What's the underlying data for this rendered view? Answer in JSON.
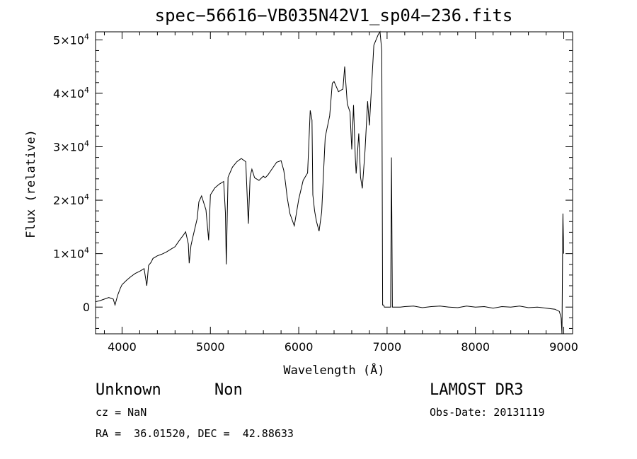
{
  "chart_data": {
    "type": "line",
    "title": "spec−56616−VB035N42V1_sp04−236.fits",
    "xlabel": "Wavelength (Å)",
    "ylabel": "Flux (relative)",
    "xlim": [
      3700,
      9100
    ],
    "ylim": [
      -5000,
      51500
    ],
    "grid": false,
    "x_ticks": [
      {
        "value": 4000,
        "label": "4000"
      },
      {
        "value": 5000,
        "label": "5000"
      },
      {
        "value": 6000,
        "label": "6000"
      },
      {
        "value": 7000,
        "label": "7000"
      },
      {
        "value": 8000,
        "label": "8000"
      },
      {
        "value": 9000,
        "label": "9000"
      }
    ],
    "y_ticks": [
      {
        "value": 0,
        "label": "0",
        "mant": "",
        "exp": ""
      },
      {
        "value": 10000,
        "label": "1×10^4",
        "mant": "1×10",
        "exp": "4"
      },
      {
        "value": 20000,
        "label": "2×10^4",
        "mant": "2×10",
        "exp": "4"
      },
      {
        "value": 30000,
        "label": "3×10^4",
        "mant": "3×10",
        "exp": "4"
      },
      {
        "value": 40000,
        "label": "4×10^4",
        "mant": "4×10",
        "exp": "4"
      },
      {
        "value": 50000,
        "label": "5×10^4",
        "mant": "5×10",
        "exp": "4"
      }
    ],
    "series": [
      {
        "x": [
          3700,
          3750,
          3800,
          3850,
          3900,
          3920,
          3950,
          3980,
          4000,
          4050,
          4100,
          4150,
          4200,
          4250,
          4280,
          4300,
          4330,
          4350,
          4400,
          4450,
          4500,
          4550,
          4600,
          4650,
          4700,
          4720,
          4750,
          4760,
          4780,
          4800,
          4850,
          4870,
          4900,
          4950,
          4980,
          5000,
          5050,
          5100,
          5150,
          5170,
          5180,
          5200,
          5250,
          5300,
          5350,
          5400,
          5430,
          5450,
          5470,
          5500,
          5550,
          5600,
          5620,
          5650,
          5700,
          5750,
          5800,
          5830,
          5850,
          5870,
          5900,
          5950,
          6000,
          6050,
          6100,
          6130,
          6150,
          6160,
          6180,
          6200,
          6230,
          6260,
          6300,
          6350,
          6380,
          6400,
          6450,
          6500,
          6520,
          6550,
          6580,
          6600,
          6620,
          6640,
          6650,
          6680,
          6700,
          6720,
          6750,
          6780,
          6800,
          6850,
          6900,
          6920,
          6940,
          6950,
          6960,
          6970,
          6980,
          7000,
          7020,
          7040,
          7050,
          7060,
          7070,
          7080,
          7150,
          7200,
          7300,
          7400,
          7500,
          7600,
          7700,
          7800,
          7900,
          8000,
          8100,
          8200,
          8300,
          8400,
          8500,
          8600,
          8700,
          8800,
          8900,
          8950,
          8970,
          8980,
          8990,
          9000
        ],
        "y": [
          1000,
          1200,
          1500,
          1800,
          1500,
          400,
          2200,
          3500,
          4200,
          5000,
          5700,
          6300,
          6700,
          7200,
          4000,
          7800,
          8400,
          9100,
          9600,
          9900,
          10300,
          10800,
          11300,
          12500,
          13600,
          14100,
          11800,
          8200,
          11500,
          13000,
          16500,
          19700,
          20800,
          18200,
          12500,
          21000,
          22300,
          23000,
          23500,
          17600,
          8000,
          24300,
          26200,
          27200,
          27800,
          27200,
          15600,
          24400,
          25800,
          24200,
          23700,
          24500,
          24200,
          24700,
          25900,
          27100,
          27400,
          25600,
          23200,
          20500,
          17500,
          15200,
          20200,
          23700,
          25100,
          36800,
          35000,
          21000,
          18000,
          16100,
          14200,
          17800,
          31800,
          35800,
          41900,
          42200,
          40300,
          40800,
          45000,
          38000,
          36500,
          29500,
          37800,
          28000,
          25000,
          32500,
          24300,
          22200,
          29200,
          38500,
          34000,
          49000,
          51000,
          51500,
          48000,
          400,
          400,
          0,
          0,
          0,
          0,
          0,
          28000,
          0,
          0,
          0,
          0,
          100,
          200,
          -100,
          100,
          200,
          0,
          -100,
          200,
          0,
          100,
          -200,
          100,
          0,
          200,
          -100,
          0,
          -200,
          -400,
          -800,
          -2000,
          -5000,
          17500,
          10000
        ]
      }
    ]
  },
  "footer": {
    "class_label": "Unknown",
    "subclass_label": "Non",
    "survey": "LAMOST DR3",
    "redshift": "cz = NaN",
    "obs_date": "Obs-Date: 20131119",
    "coords": "RA =  36.01520, DEC =  42.88633"
  }
}
